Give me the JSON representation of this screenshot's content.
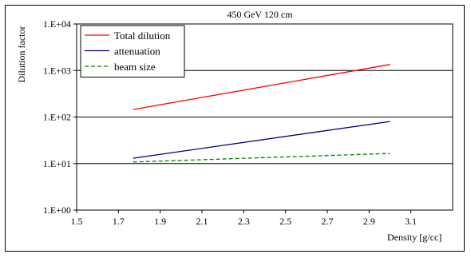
{
  "chart_data": {
    "type": "line",
    "title": "450 GeV 120 cm",
    "xlabel": "Density [g/cc]",
    "ylabel": "Dilution factor",
    "x_scale": "linear",
    "y_scale": "log",
    "xlim": [
      1.5,
      3.3
    ],
    "ylim": [
      1,
      10000
    ],
    "x_ticks": [
      "1.5",
      "1.7",
      "1.9",
      "2.1",
      "2.3",
      "2.5",
      "2.7",
      "2.9",
      "3.1"
    ],
    "y_ticks": [
      "1.E+00",
      "1.E+01",
      "1.E+02",
      "1.E+03",
      "1.E+04"
    ],
    "grid": "horizontal",
    "legend_position": "top-left",
    "series": [
      {
        "name": "Total dilution",
        "color": "#ff0000",
        "dash": "solid",
        "x": [
          1.77,
          3.0
        ],
        "y": [
          145,
          1350
        ]
      },
      {
        "name": "attenuation",
        "color": "#000080",
        "dash": "solid",
        "x": [
          1.77,
          3.0
        ],
        "y": [
          13,
          80
        ]
      },
      {
        "name": "beam size",
        "color": "#008000",
        "dash": "dashed",
        "x": [
          1.77,
          3.0
        ],
        "y": [
          10.8,
          16.5
        ]
      }
    ]
  }
}
